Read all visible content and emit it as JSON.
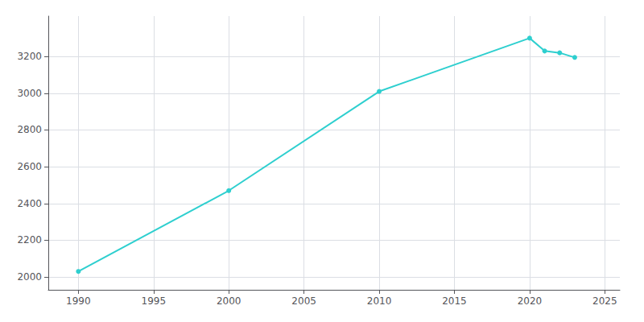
{
  "chart_data": {
    "type": "line",
    "x": [
      1990,
      2000,
      2010,
      2020,
      2021,
      2022,
      2023
    ],
    "values": [
      2030,
      2470,
      3010,
      3300,
      3230,
      3220,
      3195
    ],
    "color": "#2ecfcf",
    "marker": "circle",
    "xlim": [
      1988,
      2026
    ],
    "xticks": [
      1990,
      1995,
      2000,
      2005,
      2010,
      2015,
      2020,
      2025
    ],
    "ylim": [
      1930,
      3420
    ],
    "yticks": [
      2000,
      2200,
      2400,
      2600,
      2800,
      3000,
      3200
    ],
    "grid": true
  }
}
